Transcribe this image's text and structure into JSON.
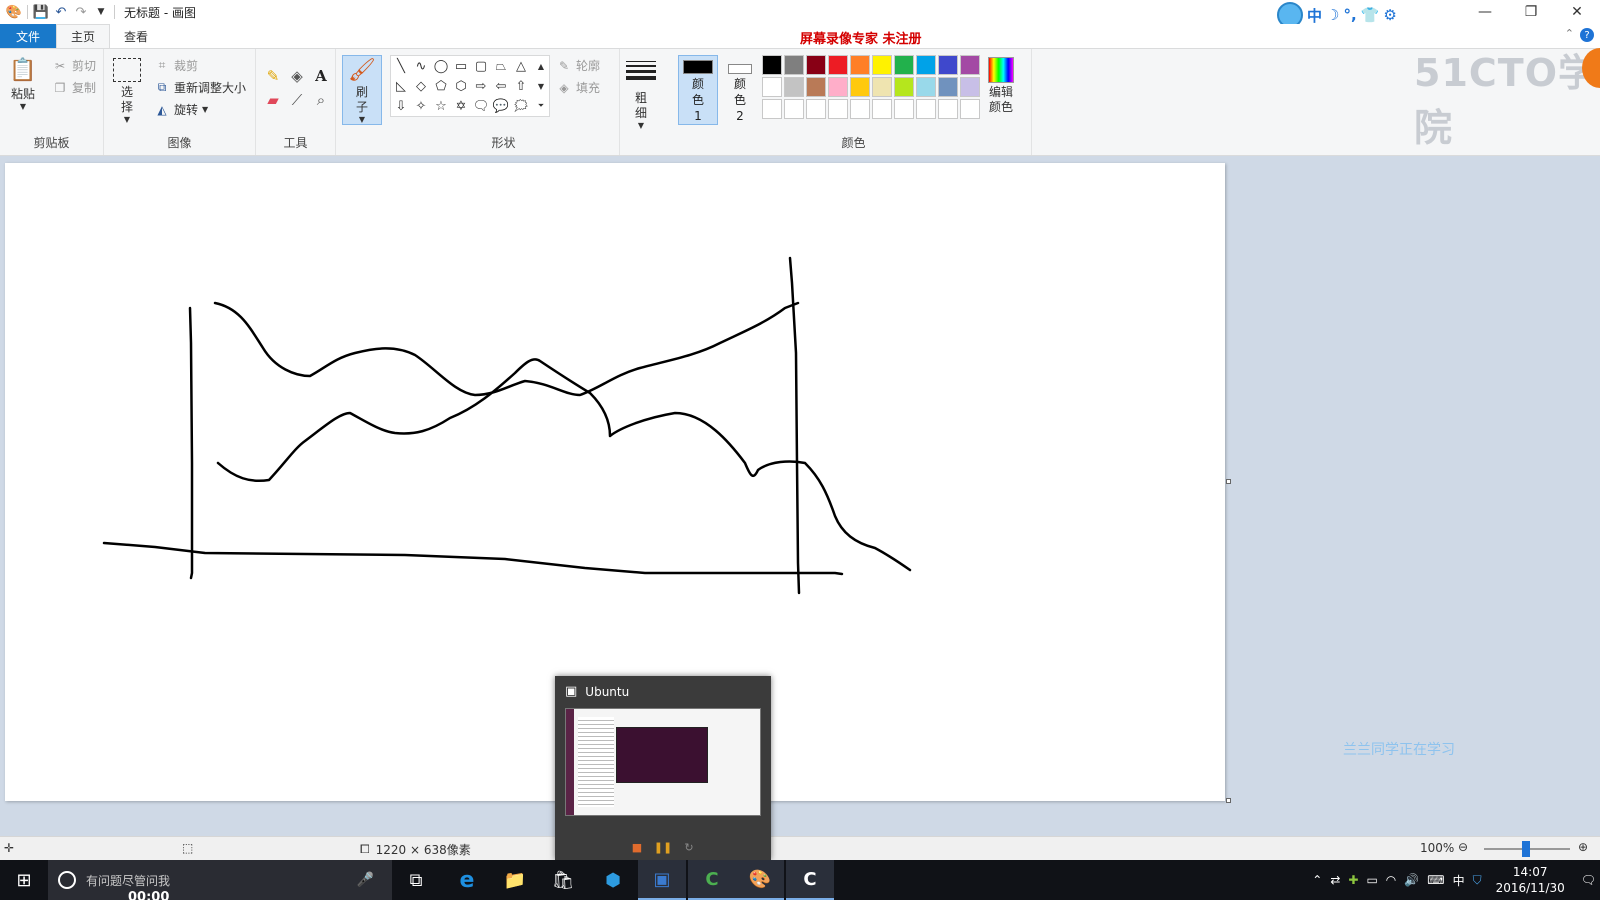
{
  "window": {
    "title": "无标题 - 画图",
    "controls": [
      "—",
      "❐",
      "✕"
    ]
  },
  "recorder_watermark": "屏幕录像专家  未注册",
  "ime": {
    "mode": "中"
  },
  "ribbon_tabs": [
    {
      "label": "文件"
    },
    {
      "label": "主页"
    },
    {
      "label": "查看"
    }
  ],
  "ribbon": {
    "clipboard": {
      "label": "剪贴板",
      "paste": "粘贴",
      "cut": "剪切",
      "copy": "复制"
    },
    "image": {
      "label": "图像",
      "select": "选择",
      "crop": "裁剪",
      "resize": "重新调整大小",
      "rotate": "旋转"
    },
    "tools": {
      "label": "工具"
    },
    "brushes": {
      "label": "刷子"
    },
    "shapes": {
      "label": "形状",
      "outline": "轮廓",
      "fill": "填充"
    },
    "size": {
      "label": "粗细"
    },
    "colors": {
      "label": "颜色",
      "color1": "颜色 1",
      "color2": "颜色 2",
      "edit": "编辑颜色",
      "color1_value": "#000000",
      "color2_value": "#ffffff",
      "palette": [
        "#000000",
        "#7f7f7f",
        "#880015",
        "#ed1c24",
        "#ff7f27",
        "#fff200",
        "#22b14c",
        "#00a2e8",
        "#3f48cc",
        "#a349a4",
        "#ffffff",
        "#c3c3c3",
        "#b97a57",
        "#ffaec9",
        "#ffc90e",
        "#efe4b0",
        "#b5e61d",
        "#99d9ea",
        "#7092be",
        "#c8bfe7",
        "#ffffff",
        "#ffffff",
        "#ffffff",
        "#ffffff",
        "#ffffff",
        "#ffffff",
        "#ffffff",
        "#ffffff",
        "#ffffff",
        "#ffffff"
      ]
    }
  },
  "canvas_watermark": "兰兰同学正在学习",
  "brand_logo": "51CTO学院",
  "status": {
    "size": "1220 × 638像素",
    "zoom": "100%"
  },
  "thumbnail": {
    "title": "Ubuntu"
  },
  "taskbar": {
    "search_placeholder": "有问题尽管问我",
    "recording_time": "00:00",
    "ime": "中",
    "time": "14:07",
    "date": "2016/11/30"
  }
}
